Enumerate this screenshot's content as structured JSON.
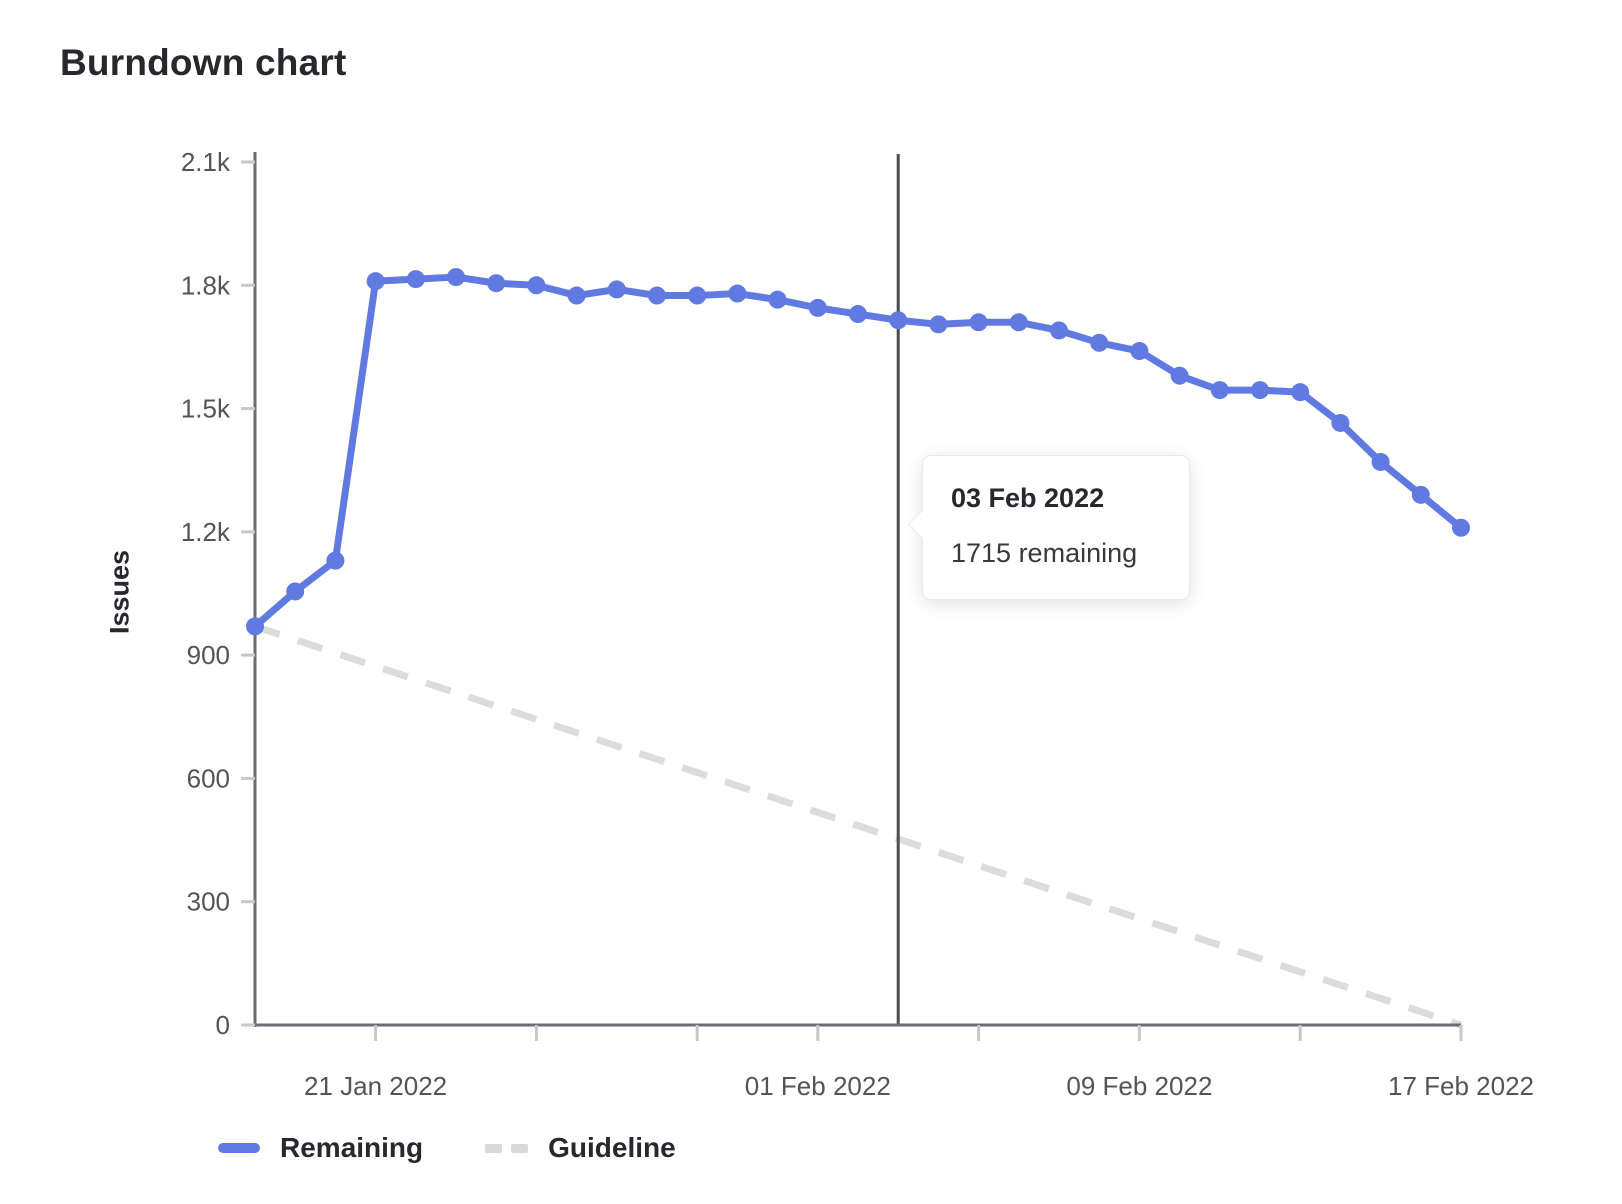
{
  "page": {
    "title": "Burndown chart"
  },
  "chart_data": {
    "type": "line",
    "title": "Burndown chart",
    "xlabel": "",
    "ylabel": "Issues",
    "ylim": [
      0,
      2100
    ],
    "grid": false,
    "legend_position": "bottom",
    "categories": [
      "18 Jan 2022",
      "19 Jan 2022",
      "20 Jan 2022",
      "21 Jan 2022",
      "22 Jan 2022",
      "23 Jan 2022",
      "24 Jan 2022",
      "25 Jan 2022",
      "26 Jan 2022",
      "27 Jan 2022",
      "28 Jan 2022",
      "29 Jan 2022",
      "30 Jan 2022",
      "31 Jan 2022",
      "01 Feb 2022",
      "02 Feb 2022",
      "03 Feb 2022",
      "04 Feb 2022",
      "05 Feb 2022",
      "06 Feb 2022",
      "07 Feb 2022",
      "08 Feb 2022",
      "09 Feb 2022",
      "10 Feb 2022",
      "11 Feb 2022",
      "12 Feb 2022",
      "13 Feb 2022",
      "14 Feb 2022",
      "15 Feb 2022",
      "16 Feb 2022",
      "17 Feb 2022"
    ],
    "series": [
      {
        "name": "Remaining",
        "style": "solid",
        "color": "#617ae2",
        "values": [
          970,
          1055,
          1130,
          1810,
          1815,
          1820,
          1805,
          1800,
          1775,
          1790,
          1775,
          1775,
          1780,
          1765,
          1745,
          1730,
          1715,
          1705,
          1710,
          1710,
          1690,
          1660,
          1640,
          1580,
          1545,
          1545,
          1540,
          1465,
          1370,
          1290,
          1210
        ]
      },
      {
        "name": "Guideline",
        "style": "dashed",
        "color": "#dcdcdc",
        "endpoints": [
          {
            "x": "18 Jan 2022",
            "y": 970
          },
          {
            "x": "17 Feb 2022",
            "y": 0
          }
        ]
      }
    ],
    "yticks": {
      "values": [
        0,
        300,
        600,
        900,
        1200,
        1500,
        1800,
        2100
      ],
      "labels": [
        "0",
        "300",
        "600",
        "900",
        "1.2k",
        "1.5k",
        "1.8k",
        "2.1k"
      ]
    },
    "xticks": {
      "mark_indices": [
        3,
        7,
        11,
        14,
        18,
        22,
        26,
        30
      ],
      "labeled": [
        {
          "index": 3,
          "text": "21 Jan 2022"
        },
        {
          "index": 14,
          "text": "01 Feb 2022"
        },
        {
          "index": 22,
          "text": "09 Feb 2022"
        },
        {
          "index": 30,
          "text": "17 Feb 2022"
        }
      ]
    },
    "today_line": {
      "category": "03 Feb 2022",
      "index": 16,
      "color": "#4c4c4c"
    },
    "colors": {
      "axis_line": "#6b6e74",
      "tick_mark": "#c8c8c8",
      "tick_label": "#545454"
    }
  },
  "tooltip": {
    "title": "03 Feb 2022",
    "body": "1715 remaining"
  },
  "legend": {
    "items": [
      {
        "label": "Remaining",
        "swatch": "solid",
        "color": "#617ae2"
      },
      {
        "label": "Guideline",
        "swatch": "dashed",
        "color": "#d9d9d9"
      }
    ]
  }
}
